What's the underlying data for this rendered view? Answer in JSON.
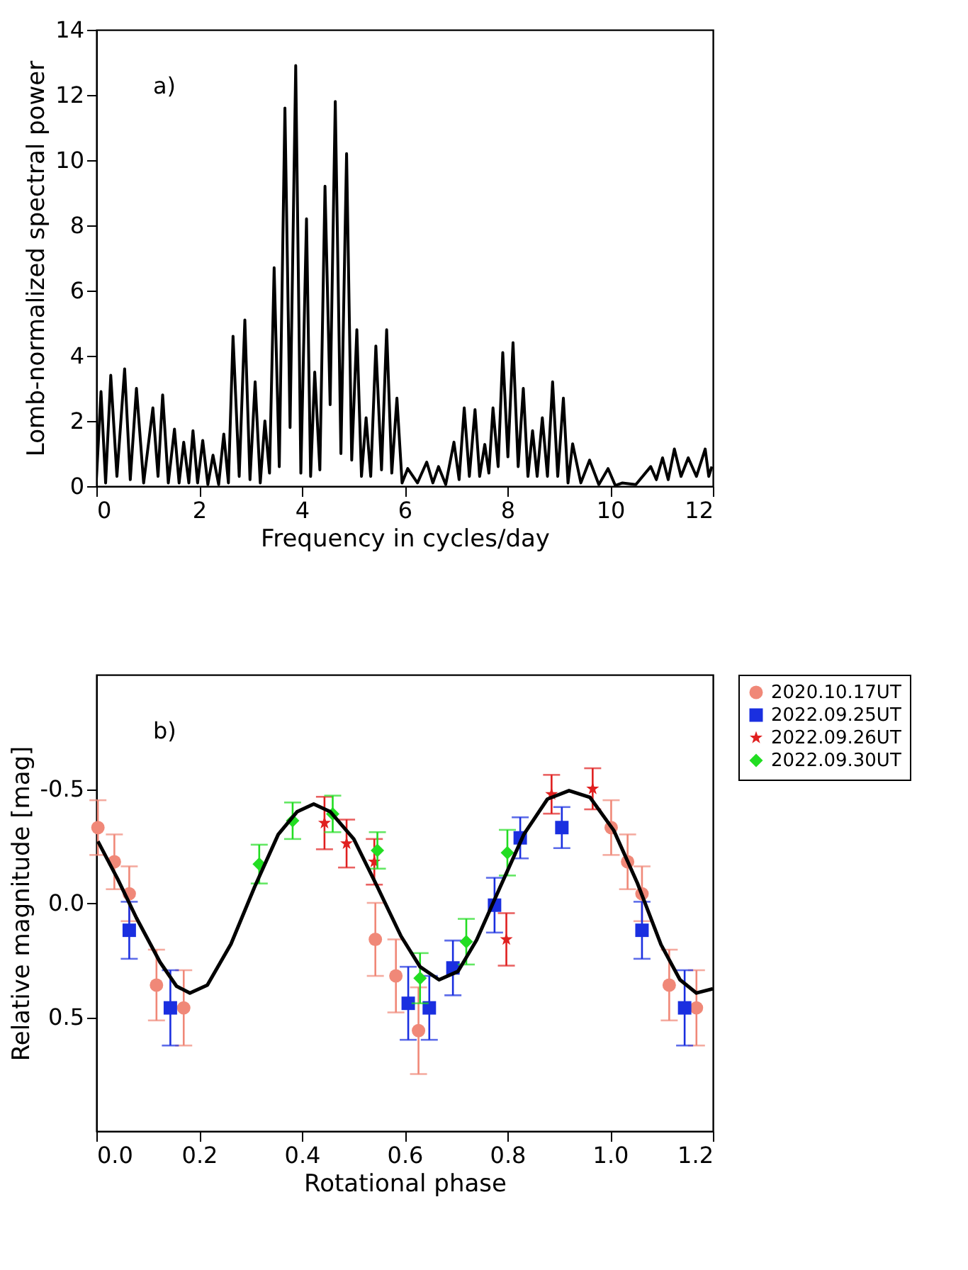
{
  "chart_data": [
    {
      "type": "line",
      "xlabel": "Frequency in cycles/day",
      "ylabel": "Lomb-normalized spectral power",
      "annotations": [
        "a)"
      ],
      "xlim": [
        0,
        12
      ],
      "ylim": [
        0,
        14
      ],
      "xticks": [
        0,
        2,
        4,
        6,
        8,
        10,
        12
      ],
      "yticks": [
        0,
        2,
        4,
        6,
        8,
        10,
        12,
        14
      ],
      "grid": false,
      "legend": false,
      "series": [
        {
          "color": "#000000",
          "x": [
            0,
            0.09,
            0.18,
            0.28,
            0.4,
            0.55,
            0.66,
            0.78,
            0.92,
            1.1,
            1.2,
            1.29,
            1.4,
            1.52,
            1.61,
            1.7,
            1.8,
            1.88,
            1.97,
            2.07,
            2.17,
            2.27,
            2.38,
            2.48,
            2.57,
            2.66,
            2.78,
            2.89,
            2.99,
            3.09,
            3.19,
            3.28,
            3.37,
            3.46,
            3.56,
            3.67,
            3.77,
            3.88,
            3.98,
            4.09,
            4.17,
            4.25,
            4.35,
            4.45,
            4.55,
            4.65,
            4.76,
            4.87,
            4.97,
            5.07,
            5.16,
            5.25,
            5.34,
            5.44,
            5.55,
            5.65,
            5.75,
            5.85,
            5.95,
            6.06,
            6.25,
            6.43,
            6.55,
            6.66,
            6.8,
            6.96,
            7.06,
            7.16,
            7.26,
            7.37,
            7.46,
            7.56,
            7.64,
            7.72,
            7.82,
            7.91,
            8.01,
            8.11,
            8.21,
            8.31,
            8.4,
            8.49,
            8.58,
            8.68,
            8.78,
            8.88,
            8.98,
            9.09,
            9.18,
            9.27,
            9.43,
            9.6,
            9.78,
            9.96,
            10.1,
            10.24,
            10.5,
            10.79,
            10.9,
            11.02,
            11.13,
            11.25,
            11.38,
            11.52,
            11.68,
            11.85,
            11.92,
            11.98
          ],
          "values": [
            0.2,
            2.9,
            0.1,
            3.4,
            0.3,
            3.6,
            0.2,
            3.0,
            0.1,
            2.4,
            0.3,
            2.8,
            0.1,
            1.75,
            0.1,
            1.35,
            0.1,
            1.7,
            0.1,
            1.4,
            0.05,
            0.95,
            0.05,
            1.6,
            0.1,
            4.6,
            0.3,
            5.1,
            0.2,
            3.2,
            0.1,
            2.0,
            0.4,
            6.7,
            0.6,
            11.6,
            1.8,
            12.9,
            0.4,
            8.2,
            0.3,
            3.5,
            0.5,
            9.2,
            2.5,
            11.8,
            1.0,
            10.2,
            0.8,
            4.8,
            0.3,
            2.1,
            0.3,
            4.3,
            0.5,
            4.8,
            0.4,
            2.7,
            0.1,
            0.54,
            0.1,
            0.74,
            0.1,
            0.6,
            0.05,
            1.35,
            0.2,
            2.4,
            0.3,
            2.35,
            0.3,
            1.28,
            0.4,
            2.4,
            0.6,
            4.1,
            0.9,
            4.4,
            0.6,
            3.0,
            0.3,
            1.7,
            0.3,
            2.1,
            0.3,
            3.2,
            0.3,
            2.7,
            0.1,
            1.3,
            0.1,
            0.8,
            0.05,
            0.54,
            0.02,
            0.1,
            0.05,
            0.6,
            0.2,
            0.87,
            0.2,
            1.14,
            0.3,
            0.87,
            0.3,
            1.14,
            0.3,
            0.6
          ]
        }
      ]
    },
    {
      "type": "scatter",
      "xlabel": "Rotational phase",
      "ylabel": "Relative magnitude [mag]",
      "annotations": [
        "b)"
      ],
      "xlim": [
        0,
        1.2
      ],
      "ylim": [
        1.0,
        -1.0
      ],
      "xticks": [
        {
          "value": 0,
          "label": "0.0"
        },
        {
          "value": 0.2,
          "label": "0.2"
        },
        {
          "value": 0.4,
          "label": "0.4"
        },
        {
          "value": 0.6,
          "label": "0.6"
        },
        {
          "value": 0.8,
          "label": "0.8"
        },
        {
          "value": 1.0,
          "label": "1.0"
        },
        {
          "value": 1.2,
          "label": "1.2"
        }
      ],
      "yticks": [
        {
          "value": -0.5,
          "label": "-0.5"
        },
        {
          "value": 0,
          "label": "0.0"
        },
        {
          "value": 0.5,
          "label": "0.5"
        }
      ],
      "grid": false,
      "legend": "right",
      "series": [
        {
          "name": "2020.10.17UT",
          "color": "#f08878",
          "marker": "circle",
          "x": [
            0.003,
            0.035,
            0.064,
            0.117,
            0.17,
            0.543,
            0.583,
            0.627,
            1.002,
            1.034,
            1.062,
            1.115,
            1.168
          ],
          "values": [
            -0.33,
            -0.18,
            -0.04,
            0.36,
            0.46,
            0.16,
            0.32,
            0.56,
            -0.33,
            -0.18,
            -0.04,
            0.36,
            0.46
          ],
          "errors": [
            0.12,
            0.12,
            0.12,
            0.155,
            0.165,
            0.16,
            0.16,
            0.19,
            0.12,
            0.12,
            0.12,
            0.155,
            0.165
          ]
        },
        {
          "name": "2022.09.25UT",
          "color": "#1a2fe0",
          "marker": "square",
          "x": [
            0.064,
            0.144,
            0.607,
            0.648,
            0.694,
            0.775,
            0.825,
            0.906,
            1.062,
            1.145
          ],
          "values": [
            0.12,
            0.46,
            0.44,
            0.46,
            0.285,
            0.01,
            -0.285,
            -0.33,
            0.12,
            0.46
          ],
          "errors": [
            0.125,
            0.165,
            0.16,
            0.14,
            0.12,
            0.12,
            0.09,
            0.09,
            0.125,
            0.165
          ]
        },
        {
          "name": "2022.09.26UT",
          "color": "#e02020",
          "marker": "star",
          "x": [
            0.444,
            0.487,
            0.541,
            0.798,
            0.886,
            0.966
          ],
          "values": [
            -0.35,
            -0.26,
            -0.18,
            0.16,
            -0.476,
            -0.5
          ],
          "errors": [
            0.115,
            0.105,
            0.1,
            0.115,
            0.085,
            0.09
          ]
        },
        {
          "name": "2022.09.30UT",
          "color": "#22dd22",
          "marker": "diamond",
          "x": [
            0.317,
            0.382,
            0.46,
            0.547,
            0.63,
            0.72,
            0.8
          ],
          "values": [
            -0.17,
            -0.36,
            -0.39,
            -0.23,
            0.33,
            0.17,
            -0.22
          ],
          "errors": [
            0.085,
            0.08,
            0.08,
            0.08,
            0.11,
            0.1,
            0.1
          ]
        },
        {
          "type": "line",
          "color": "#000000",
          "marker": "none",
          "x": [
            0.003,
            0.041,
            0.078,
            0.124,
            0.156,
            0.182,
            0.216,
            0.262,
            0.308,
            0.354,
            0.391,
            0.423,
            0.455,
            0.501,
            0.547,
            0.593,
            0.63,
            0.667,
            0.704,
            0.74,
            0.786,
            0.832,
            0.878,
            0.92,
            0.961,
            1.007,
            1.053,
            1.099,
            1.136,
            1.168,
            1.2
          ],
          "values": [
            -0.27,
            -0.107,
            0.066,
            0.26,
            0.365,
            0.395,
            0.36,
            0.18,
            -0.07,
            -0.3,
            -0.4,
            -0.433,
            -0.4,
            -0.28,
            -0.07,
            0.146,
            0.28,
            0.337,
            0.3,
            0.163,
            -0.07,
            -0.3,
            -0.455,
            -0.492,
            -0.462,
            -0.318,
            -0.087,
            0.183,
            0.337,
            0.395,
            0.376
          ]
        }
      ]
    }
  ]
}
